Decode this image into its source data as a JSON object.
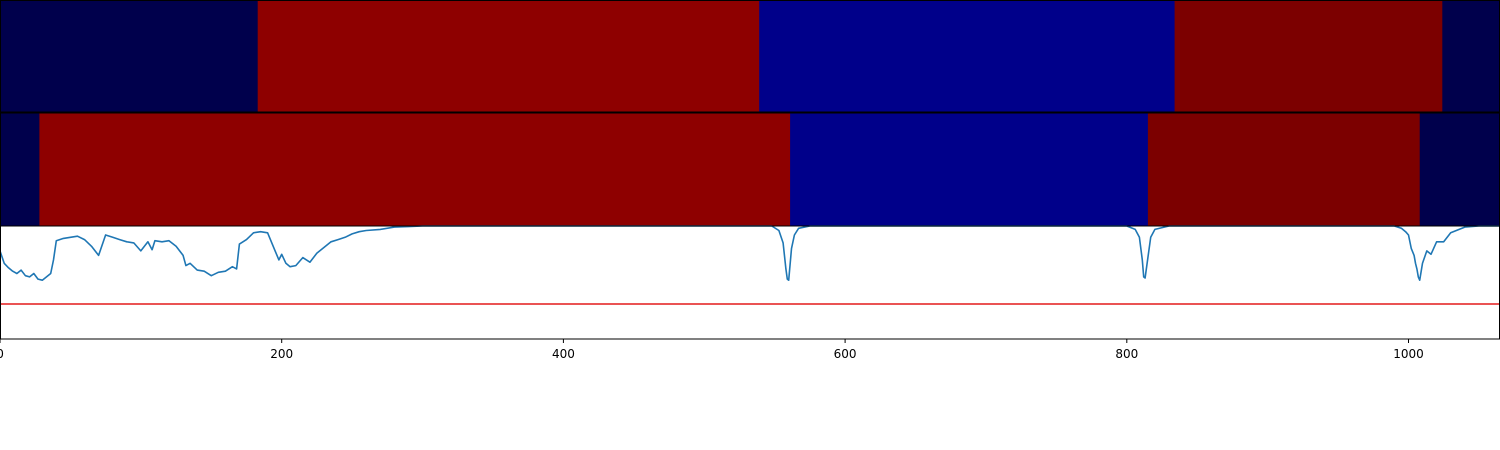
{
  "chart_data": [
    {
      "type": "heatmap",
      "panel": "segmentation-1",
      "xlim": [
        0,
        1065
      ],
      "segments": [
        {
          "start": 0,
          "end": 183,
          "color": "#00004c"
        },
        {
          "start": 183,
          "end": 539,
          "color": "#8e0000"
        },
        {
          "start": 539,
          "end": 834,
          "color": "#00008a"
        },
        {
          "start": 834,
          "end": 1024,
          "color": "#7c0000"
        },
        {
          "start": 1024,
          "end": 1065,
          "color": "#00004c"
        }
      ]
    },
    {
      "type": "heatmap",
      "panel": "segmentation-2",
      "xlim": [
        0,
        1065
      ],
      "segments": [
        {
          "start": 0,
          "end": 28,
          "color": "#00004c"
        },
        {
          "start": 28,
          "end": 561,
          "color": "#8e0000"
        },
        {
          "start": 561,
          "end": 815,
          "color": "#00008a"
        },
        {
          "start": 815,
          "end": 1008,
          "color": "#7c0000"
        },
        {
          "start": 1008,
          "end": 1065,
          "color": "#00004c"
        }
      ]
    },
    {
      "type": "line",
      "panel": "score-curve",
      "xlim": [
        0,
        1065
      ],
      "ylim": [
        -1.0,
        0.0
      ],
      "threshold": {
        "y": -0.69,
        "color": "#e41a1c"
      },
      "series": [
        {
          "color": "#1f77b4",
          "x": [
            0,
            3,
            6,
            9,
            12,
            15,
            18,
            21,
            24,
            27,
            30,
            33,
            36,
            38,
            40,
            45,
            50,
            55,
            60,
            65,
            70,
            75,
            80,
            85,
            90,
            95,
            100,
            105,
            108,
            110,
            115,
            120,
            125,
            130,
            132,
            135,
            140,
            145,
            150,
            155,
            160,
            165,
            168,
            170,
            175,
            180,
            185,
            190,
            195,
            198,
            200,
            203,
            206,
            210,
            215,
            220,
            225,
            230,
            235,
            240,
            245,
            250,
            255,
            260,
            270,
            280,
            290,
            300,
            320,
            340,
            400,
            500,
            548,
            553,
            556,
            558,
            559,
            560,
            562,
            564,
            567,
            575,
            600,
            700,
            780,
            800,
            806,
            809,
            811,
            812,
            813,
            815,
            817,
            820,
            830,
            900,
            970,
            990,
            995,
            998,
            1000,
            1002,
            1004,
            1005,
            1006,
            1007,
            1008,
            1010,
            1013,
            1016,
            1020,
            1025,
            1030,
            1040,
            1050,
            1065
          ],
          "y": [
            -0.22,
            -0.33,
            -0.37,
            -0.4,
            -0.42,
            -0.39,
            -0.44,
            -0.45,
            -0.42,
            -0.47,
            -0.48,
            -0.45,
            -0.42,
            -0.3,
            -0.13,
            -0.11,
            -0.1,
            -0.09,
            -0.12,
            -0.18,
            -0.26,
            -0.08,
            -0.1,
            -0.12,
            -0.14,
            -0.15,
            -0.22,
            -0.14,
            -0.21,
            -0.13,
            -0.14,
            -0.13,
            -0.18,
            -0.26,
            -0.35,
            -0.33,
            -0.39,
            -0.4,
            -0.44,
            -0.41,
            -0.4,
            -0.36,
            -0.38,
            -0.16,
            -0.12,
            -0.06,
            -0.05,
            -0.06,
            -0.21,
            -0.3,
            -0.25,
            -0.33,
            -0.36,
            -0.35,
            -0.28,
            -0.32,
            -0.24,
            -0.19,
            -0.14,
            -0.12,
            -0.1,
            -0.07,
            -0.05,
            -0.04,
            -0.03,
            -0.01,
            -0.005,
            0.0,
            0.0,
            0.0,
            0.0,
            0.0,
            0.0,
            -0.04,
            -0.15,
            -0.38,
            -0.47,
            -0.48,
            -0.2,
            -0.08,
            -0.02,
            0.0,
            0.0,
            0.0,
            0.0,
            0.0,
            -0.03,
            -0.1,
            -0.3,
            -0.45,
            -0.46,
            -0.28,
            -0.1,
            -0.03,
            0.0,
            0.0,
            0.0,
            0.0,
            -0.02,
            -0.05,
            -0.08,
            -0.2,
            -0.26,
            -0.33,
            -0.38,
            -0.45,
            -0.48,
            -0.33,
            -0.22,
            -0.25,
            -0.14,
            -0.14,
            -0.06,
            -0.01,
            0.0,
            0.0
          ]
        }
      ]
    }
  ],
  "axis": {
    "x_ticks": [
      0,
      200,
      400,
      600,
      800,
      1000
    ],
    "x_tick_labels": [
      "0",
      "200",
      "400",
      "600",
      "800",
      "1000"
    ]
  }
}
